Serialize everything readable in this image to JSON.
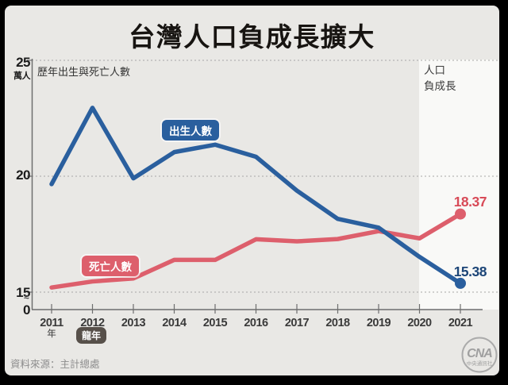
{
  "title": "台灣人口負成長擴大",
  "axis": {
    "y_top": "25",
    "y_unit": "萬人",
    "y_mid": "20",
    "y_low": "15",
    "y_zero": "0",
    "y_break": "≈",
    "year_suffix": "年",
    "dragon_badge": "龍年"
  },
  "footer": {
    "source": "資料來源：主計總處"
  },
  "logo": {
    "text": "CNA",
    "subtext": "中央通訊社"
  },
  "chart_data": {
    "type": "line",
    "title": "台灣人口負成長擴大",
    "subtitle": "歷年出生與死亡人數",
    "unit": "萬人",
    "x": [
      2011,
      2012,
      2013,
      2014,
      2015,
      2016,
      2017,
      2018,
      2019,
      2020,
      2021
    ],
    "yticks": [
      25,
      20,
      15
    ],
    "ylim": [
      15,
      25
    ],
    "y_axis_break_to_zero": true,
    "grid": "dotted-horizontal",
    "series": [
      {
        "key": "births",
        "name": "出生人數",
        "color": "#2a5f9e",
        "values": [
          19.66,
          22.95,
          19.91,
          21.04,
          21.36,
          20.84,
          19.38,
          18.16,
          17.78,
          16.52,
          15.38
        ],
        "end_label": "15.38",
        "end_label_color": "#1c4577"
      },
      {
        "key": "deaths",
        "name": "死亡人數",
        "color": "#dd5f6c",
        "values": [
          15.2,
          15.46,
          15.59,
          16.39,
          16.39,
          17.28,
          17.19,
          17.29,
          17.63,
          17.32,
          18.37
        ],
        "end_label": "18.37",
        "end_label_color": "#d84a57"
      }
    ],
    "highlight_band": {
      "label": "人口\n負成長",
      "years": [
        2020,
        2021
      ],
      "fill": "#f9f9f7"
    },
    "annotations": [
      {
        "year": 2011,
        "label": "年"
      },
      {
        "year": 2012,
        "label": "龍年"
      }
    ]
  }
}
